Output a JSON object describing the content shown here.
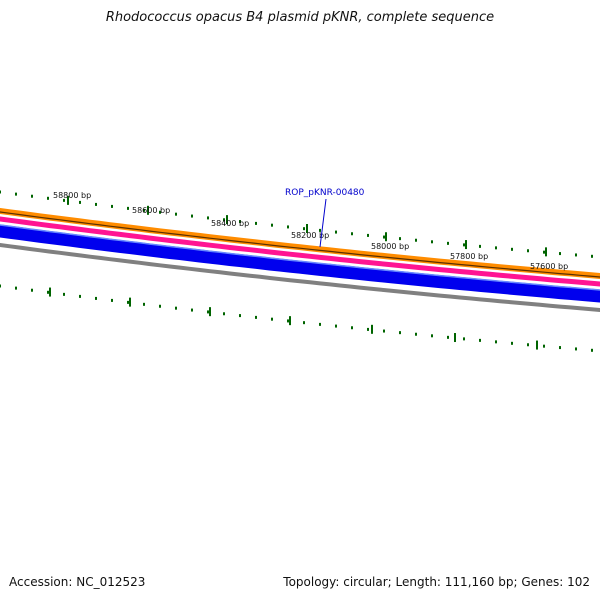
{
  "title": "Rhodococcus opacus B4 plasmid pKNR, complete sequence",
  "footer": {
    "accession": "Accession: NC_012523",
    "summary": "Topology: circular; Length: 111,160 bp; Genes: 102"
  },
  "scale_labels": [
    "58800 bp",
    "58600 bp",
    "58400 bp",
    "58200 bp",
    "58000 bp",
    "57800 bp",
    "57600 bp"
  ],
  "gene_label": "ROP_pKNR-00480",
  "colors": {
    "orange_band": "#ff8c00",
    "pink_band": "#ff1493",
    "blue_band": "#0000ee",
    "grey_band": "#808080",
    "ticks": "#006400",
    "gene_label": "#0000cc"
  }
}
